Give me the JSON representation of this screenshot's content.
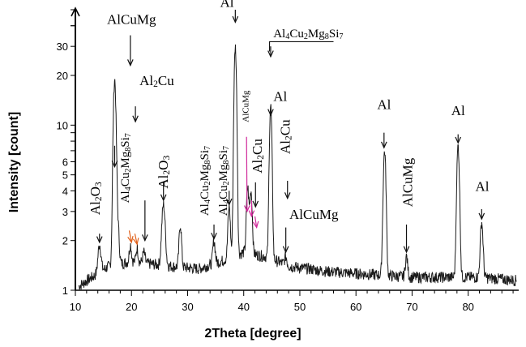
{
  "chart_data": {
    "type": "line",
    "title": "",
    "xlabel": "2Theta [degree]",
    "ylabel": "Intensity [count]",
    "x_scale": "linear",
    "y_scale": "log",
    "xlim": [
      10,
      89
    ],
    "ylim": [
      1,
      50
    ],
    "x_ticks": [
      "10",
      "20",
      "30",
      "40",
      "50",
      "60",
      "70",
      "80"
    ],
    "y_ticks": [
      {
        "value": 1,
        "label": "1"
      },
      {
        "value": 2,
        "label": "2"
      },
      {
        "value": 3,
        "label": "3"
      },
      {
        "value": 4,
        "label": "4"
      },
      {
        "value": 5,
        "label": "5"
      },
      {
        "value": 6,
        "label": "6"
      },
      {
        "value": 10,
        "label": "10"
      },
      {
        "value": 20,
        "label": "20"
      },
      {
        "value": 30,
        "label": "30"
      }
    ],
    "line_color": "#1a1a1a",
    "arrow_colors": {
      "black": "#111111",
      "orange": "#e0601a",
      "magenta": "#d0289a"
    },
    "baseline": [
      [
        10.5,
        1.05
      ],
      [
        13,
        1.2
      ],
      [
        16,
        1.4
      ],
      [
        18,
        1.45
      ],
      [
        20,
        1.5
      ],
      [
        23,
        1.45
      ],
      [
        27,
        1.4
      ],
      [
        32,
        1.35
      ],
      [
        36,
        1.5
      ],
      [
        40,
        1.7
      ],
      [
        44,
        1.6
      ],
      [
        48,
        1.4
      ],
      [
        55,
        1.3
      ],
      [
        62,
        1.25
      ],
      [
        70,
        1.2
      ],
      [
        76,
        1.2
      ],
      [
        82,
        1.2
      ],
      [
        88.5,
        1.15
      ]
    ],
    "peaks": [
      {
        "x": 14.3,
        "y": 1.9,
        "w": 0.25
      },
      {
        "x": 17.0,
        "y": 19,
        "w": 0.22
      },
      {
        "x": 17.6,
        "y": 2.4,
        "w": 0.2
      },
      {
        "x": 19.8,
        "y": 1.9,
        "w": 0.18
      },
      {
        "x": 21.0,
        "y": 1.8,
        "w": 0.18
      },
      {
        "x": 22.2,
        "y": 1.7,
        "w": 0.2
      },
      {
        "x": 25.7,
        "y": 3.3,
        "w": 0.28
      },
      {
        "x": 28.7,
        "y": 2.5,
        "w": 0.2
      },
      {
        "x": 34.7,
        "y": 2.0,
        "w": 0.2
      },
      {
        "x": 37.4,
        "y": 3.2,
        "w": 0.2
      },
      {
        "x": 38.5,
        "y": 30,
        "w": 0.2
      },
      {
        "x": 40.7,
        "y": 4.2,
        "w": 0.2
      },
      {
        "x": 41.3,
        "y": 4.0,
        "w": 0.2
      },
      {
        "x": 44.8,
        "y": 13,
        "w": 0.2
      },
      {
        "x": 47.5,
        "y": 1.6,
        "w": 0.2
      },
      {
        "x": 65.1,
        "y": 7.0,
        "w": 0.22
      },
      {
        "x": 69.0,
        "y": 1.6,
        "w": 0.2
      },
      {
        "x": 78.2,
        "y": 7.5,
        "w": 0.22
      },
      {
        "x": 82.4,
        "y": 2.6,
        "w": 0.22
      }
    ],
    "annotations": [
      {
        "text": "Al2O3",
        "x": 14.3,
        "y": 3.6,
        "rotate": -90
      },
      {
        "text": "AlCuMg",
        "x": 20.0,
        "y": 41,
        "rotate": 0
      },
      {
        "text": "Al2Cu",
        "x": 24.5,
        "y": 17.5,
        "rotate": 0
      },
      {
        "text": "Al4Cu2Mg8Si7",
        "x": 19.5,
        "y": 5.5,
        "rotate": -90
      },
      {
        "text": "Al2O3",
        "x": 26.5,
        "y": 5.2,
        "rotate": -90
      },
      {
        "text": "Al4Cu2Mg8Si7",
        "x": 33.7,
        "y": 4.6,
        "rotate": -90
      },
      {
        "text": "Al4Cu2Mg8Si7",
        "x": 37.0,
        "y": 4.6,
        "rotate": -90
      },
      {
        "text": "Al",
        "x": 37.0,
        "y": 52,
        "rotate": 0
      },
      {
        "text": "AlCuMg",
        "x": 40.8,
        "y": 13,
        "rotate": -90
      },
      {
        "text": "Al2Cu",
        "x": 43.2,
        "y": 6.5,
        "rotate": -90
      },
      {
        "text": "Al4Cu2Mg8Si7",
        "x": 51.5,
        "y": 34,
        "rotate": 0
      },
      {
        "text": "Al",
        "x": 46.5,
        "y": 14,
        "rotate": 0
      },
      {
        "text": "Al2Cu",
        "x": 48.2,
        "y": 8.5,
        "rotate": -90
      },
      {
        "text": "AlCuMg",
        "x": 52.5,
        "y": 2.7,
        "rotate": 0
      },
      {
        "text": "Al",
        "x": 65.0,
        "y": 12.5,
        "rotate": 0
      },
      {
        "text": "AlCuMg",
        "x": 70.0,
        "y": 4.5,
        "rotate": -90
      },
      {
        "text": "Al",
        "x": 78.2,
        "y": 11.5,
        "rotate": 0
      },
      {
        "text": "Al",
        "x": 82.5,
        "y": 4.0,
        "rotate": 0
      }
    ],
    "arrows": [
      {
        "color": "black",
        "x1": 19.8,
        "y1": 35,
        "x2": 19.8,
        "y2": 23
      },
      {
        "color": "black",
        "x1": 20.7,
        "y1": 13,
        "x2": 20.7,
        "y2": 10.5
      },
      {
        "color": "black",
        "x1": 17.0,
        "y1": 7.5,
        "x2": 17.0,
        "y2": 5.6
      },
      {
        "color": "black",
        "x1": 14.3,
        "y1": 2.2,
        "x2": 14.3,
        "y2": 1.95
      },
      {
        "color": "black",
        "x1": 22.4,
        "y1": 3.5,
        "x2": 22.4,
        "y2": 2.0
      },
      {
        "color": "black",
        "x1": 25.7,
        "y1": 4.5,
        "x2": 25.7,
        "y2": 3.5
      },
      {
        "color": "black",
        "x1": 34.7,
        "y1": 2.5,
        "x2": 34.7,
        "y2": 2.05
      },
      {
        "color": "black",
        "x1": 37.4,
        "y1": 4.0,
        "x2": 37.4,
        "y2": 3.3
      },
      {
        "color": "black",
        "x1": 38.5,
        "y1": 50,
        "x2": 38.5,
        "y2": 42
      },
      {
        "color": "black",
        "x1": 42.1,
        "y1": 4.5,
        "x2": 42.1,
        "y2": 3.2
      },
      {
        "color": "black",
        "x1": 44.8,
        "y1": 30,
        "x2": 44.8,
        "y2": 26
      },
      {
        "color": "black",
        "x1": 44.8,
        "y1": 12.5,
        "x2": 44.8,
        "y2": 11.5
      },
      {
        "color": "black",
        "x1": 47.8,
        "y1": 4.6,
        "x2": 47.8,
        "y2": 3.6
      },
      {
        "color": "black",
        "x1": 47.5,
        "y1": 2.4,
        "x2": 47.5,
        "y2": 1.7
      },
      {
        "color": "black",
        "x1": 65.0,
        "y1": 9.0,
        "x2": 65.0,
        "y2": 7.3
      },
      {
        "color": "black",
        "x1": 69.0,
        "y1": 2.5,
        "x2": 69.0,
        "y2": 1.7
      },
      {
        "color": "black",
        "x1": 78.2,
        "y1": 8.8,
        "x2": 78.2,
        "y2": 7.8
      },
      {
        "color": "black",
        "x1": 82.4,
        "y1": 3.1,
        "x2": 82.4,
        "y2": 2.7
      },
      {
        "color": "orange",
        "x1": 19.6,
        "y1": 2.3,
        "x2": 20.0,
        "y2": 1.95
      },
      {
        "color": "orange",
        "x1": 20.6,
        "y1": 2.2,
        "x2": 21.0,
        "y2": 1.9
      },
      {
        "color": "magenta",
        "x1": 40.5,
        "y1": 8.5,
        "x2": 40.6,
        "y2": 3.0
      },
      {
        "color": "magenta",
        "x1": 41.4,
        "y1": 3.5,
        "x2": 41.4,
        "y2": 2.8
      },
      {
        "color": "magenta",
        "x1": 42.0,
        "y1": 2.8,
        "x2": 42.3,
        "y2": 2.4
      }
    ],
    "bracket": {
      "color": "black",
      "x_from": 44.6,
      "x_to": 56.0,
      "y": 32
    }
  }
}
